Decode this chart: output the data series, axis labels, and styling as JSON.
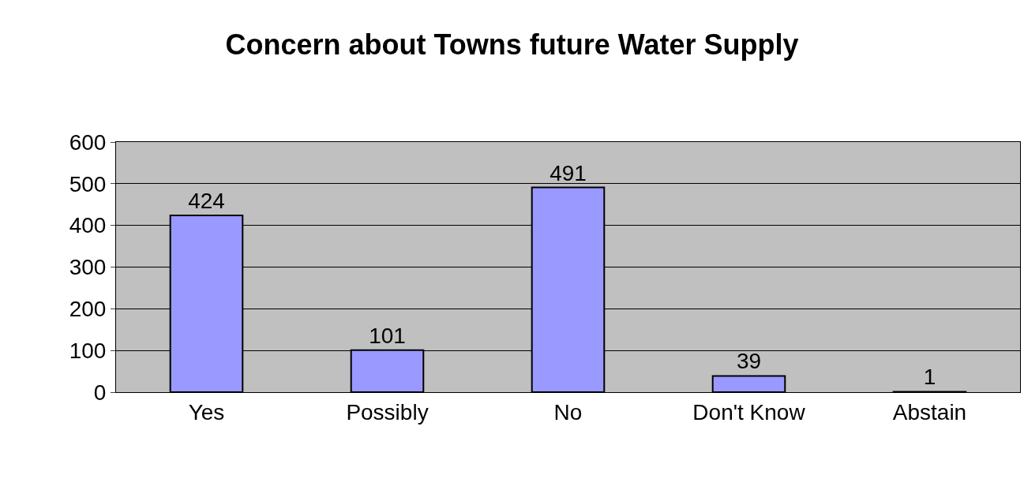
{
  "chart_data": {
    "type": "bar",
    "title": "Concern about Towns future Water Supply",
    "categories": [
      "Yes",
      "Possibly",
      "No",
      "Don't Know",
      "Abstain"
    ],
    "values": [
      424,
      101,
      491,
      39,
      1
    ],
    "color": "#9999ff",
    "ylim": [
      0,
      600
    ],
    "yticks": [
      0,
      100,
      200,
      300,
      400,
      500,
      600
    ],
    "grid": "y",
    "data_labels": true
  }
}
